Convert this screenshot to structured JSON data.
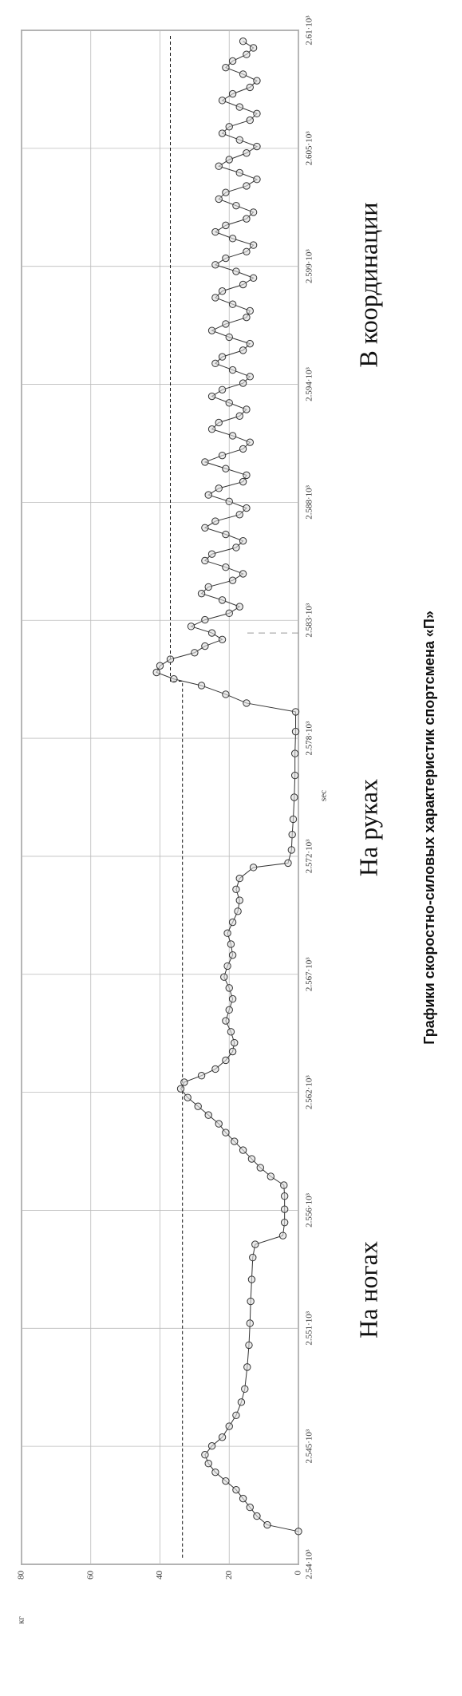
{
  "chart_data": {
    "type": "line",
    "caption": "Графики скоростно-силовых характеристик спортсмена «П»",
    "annotations": [
      "На ногах",
      "На руках",
      "В координации"
    ],
    "xlabel": "sec",
    "ylabel": "кг",
    "xlim": [
      2540,
      2610
    ],
    "xticks": [
      {
        "value": 2540,
        "label": "2.54·10³"
      },
      {
        "value": 2545.385,
        "label": "2.545·10³"
      },
      {
        "value": 2550.769,
        "label": "2.551·10³"
      },
      {
        "value": 2556.154,
        "label": "2.556·10³"
      },
      {
        "value": 2561.538,
        "label": "2.562·10³"
      },
      {
        "value": 2566.923,
        "label": "2.567·10³"
      },
      {
        "value": 2572.308,
        "label": "2.572·10³"
      },
      {
        "value": 2577.692,
        "label": "2.578·10³"
      },
      {
        "value": 2583.077,
        "label": "2.583·10³"
      },
      {
        "value": 2588.462,
        "label": "2.588·10³"
      },
      {
        "value": 2593.846,
        "label": "2.594·10³"
      },
      {
        "value": 2599.231,
        "label": "2.599·10³"
      },
      {
        "value": 2604.615,
        "label": "2.605·10³"
      },
      {
        "value": 2610,
        "label": "2.61·10³"
      }
    ],
    "ylim": [
      0,
      80
    ],
    "yticks": [
      0,
      20,
      40,
      60,
      80
    ],
    "grid": true,
    "color": "#333333",
    "x": [
      2541.5,
      2541.8,
      2542.2,
      2542.6,
      2543.0,
      2543.4,
      2543.8,
      2544.2,
      2544.6,
      2545.0,
      2545.4,
      2545.8,
      2546.3,
      2546.8,
      2547.4,
      2548.0,
      2549,
      2550,
      2551,
      2552,
      2553,
      2554,
      2554.6,
      2555.0,
      2555.6,
      2556.2,
      2556.8,
      2557.3,
      2557.7,
      2558.1,
      2558.5,
      2558.9,
      2559.3,
      2559.7,
      2560.1,
      2560.5,
      2560.9,
      2561.3,
      2561.7,
      2562.0,
      2562.3,
      2562.6,
      2563.0,
      2563.4,
      2563.8,
      2564.3,
      2564.8,
      2565.3,
      2565.8,
      2566.3,
      2566.8,
      2567.3,
      2567.8,
      2568.3,
      2568.8,
      2569.3,
      2569.8,
      2570.3,
      2570.8,
      2571.3,
      2571.8,
      2572.0,
      2572.6,
      2573.3,
      2574,
      2575,
      2576,
      2577,
      2578,
      2578.9,
      2579.3,
      2579.7,
      2580.1,
      2580.4,
      2580.7,
      2581.0,
      2581.3,
      2581.6,
      2581.9,
      2582.2,
      2582.5,
      2582.8,
      2583.1,
      2583.4,
      2583.7,
      2584.0,
      2584.3,
      2584.6,
      2584.9,
      2585.2,
      2585.5,
      2585.8,
      2586.1,
      2586.4,
      2586.7,
      2587.0,
      2587.3,
      2587.6,
      2587.9,
      2588.2,
      2588.5,
      2588.8,
      2589.1,
      2589.4,
      2589.7,
      2590.0,
      2590.3,
      2590.6,
      2590.9,
      2591.2,
      2591.5,
      2591.8,
      2592.1,
      2592.4,
      2592.7,
      2593.0,
      2593.3,
      2593.6,
      2593.9,
      2594.2,
      2594.5,
      2594.8,
      2595.1,
      2595.4,
      2595.7,
      2596.0,
      2596.3,
      2596.6,
      2596.9,
      2597.2,
      2597.5,
      2597.8,
      2598.1,
      2598.4,
      2598.7,
      2599.0,
      2599.3,
      2599.6,
      2599.9,
      2600.2,
      2600.5,
      2600.8,
      2601.1,
      2601.4,
      2601.7,
      2602.0,
      2602.3,
      2602.6,
      2602.9,
      2603.2,
      2603.5,
      2603.8,
      2604.1,
      2604.4,
      2604.7,
      2605.0,
      2605.3,
      2605.6,
      2605.9,
      2606.2,
      2606.5,
      2606.8,
      2607.1,
      2607.4,
      2607.7,
      2608.0,
      2608.3,
      2608.6,
      2608.9,
      2609.2,
      2609.5
    ],
    "values": [
      0,
      9,
      12,
      14,
      16,
      18,
      21,
      24,
      26,
      27,
      25,
      22,
      20,
      18,
      16.5,
      15.5,
      14.8,
      14.3,
      14,
      13.8,
      13.5,
      13.2,
      12.5,
      4.5,
      4,
      4,
      4,
      4.2,
      8,
      11,
      13.5,
      16,
      18.5,
      21,
      23,
      26,
      29,
      32,
      34,
      33,
      28,
      24,
      21,
      19,
      18.5,
      19.5,
      21,
      20,
      19,
      20,
      21.5,
      20.5,
      19,
      19.5,
      20.5,
      19,
      17.5,
      17,
      18,
      17,
      13,
      3,
      2,
      1.8,
      1.5,
      1.2,
      1,
      1,
      0.8,
      0.8,
      15,
      21,
      28,
      36,
      41,
      40,
      37,
      30,
      27,
      22,
      25,
      31,
      27,
      20,
      17,
      22,
      28,
      26,
      19,
      16,
      21,
      27,
      25,
      18,
      16,
      21,
      27,
      24,
      17,
      15,
      20,
      26,
      23,
      16,
      15,
      21,
      27,
      22,
      16,
      14,
      19,
      25,
      23,
      17,
      15,
      20,
      25,
      22,
      16,
      14,
      19,
      24,
      22,
      16,
      14,
      20,
      25,
      21,
      15,
      14,
      19,
      24,
      22,
      16,
      13,
      18,
      24,
      21,
      15,
      13,
      19,
      24,
      21,
      15,
      13,
      18,
      23,
      21,
      15,
      12,
      17,
      23,
      20,
      15,
      12,
      17,
      22,
      20,
      14,
      12,
      17,
      22,
      19,
      14,
      12,
      16,
      21,
      19,
      15,
      13,
      16
    ],
    "reference_line": {
      "x": [
        2540.3,
        2580.3,
        2580.3,
        2609.8
      ],
      "values": [
        33.5,
        33.5,
        37,
        37
      ]
    },
    "marker_line": {
      "x": [
        2582.5,
        2582.5
      ],
      "values": [
        0,
        15
      ]
    }
  }
}
